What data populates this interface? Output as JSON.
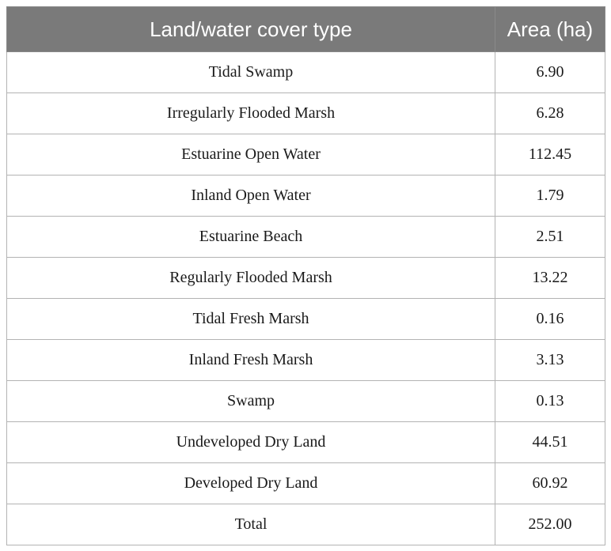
{
  "table": {
    "headers": [
      "Land/water cover type",
      "Area (ha)"
    ],
    "rows": [
      [
        "Tidal Swamp",
        "6.90"
      ],
      [
        "Irregularly Flooded Marsh",
        "6.28"
      ],
      [
        "Estuarine Open Water",
        "112.45"
      ],
      [
        "Inland Open Water",
        "1.79"
      ],
      [
        "Estuarine Beach",
        "2.51"
      ],
      [
        "Regularly Flooded Marsh",
        "13.22"
      ],
      [
        "Tidal Fresh Marsh",
        "0.16"
      ],
      [
        "Inland Fresh Marsh",
        "3.13"
      ],
      [
        "Swamp",
        "0.13"
      ],
      [
        "Undeveloped Dry Land",
        "44.51"
      ],
      [
        "Developed Dry Land",
        "60.92"
      ],
      [
        "Total",
        "252.00"
      ]
    ]
  },
  "colors": {
    "header_bg": "#7a7a7a",
    "header_text": "#ffffff",
    "border": "#b3b3b3"
  }
}
